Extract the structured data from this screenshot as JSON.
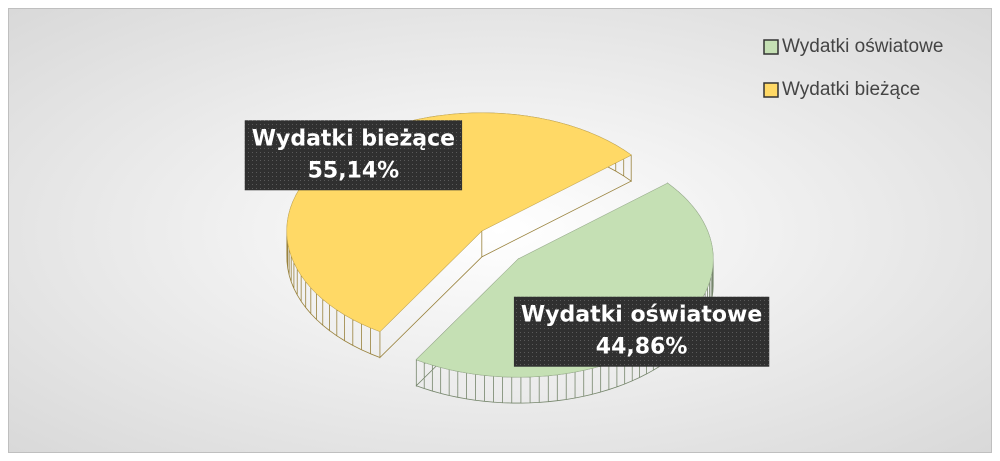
{
  "chart_data": {
    "type": "pie",
    "categories": [
      "Wydatki oświatowe",
      "Wydatki bieżące"
    ],
    "values": [
      44.86,
      55.14
    ],
    "value_labels": [
      "44,86%",
      "55,14%"
    ],
    "colors": [
      "#c5e0b4",
      "#ffd966"
    ],
    "legend": "top-right"
  }
}
